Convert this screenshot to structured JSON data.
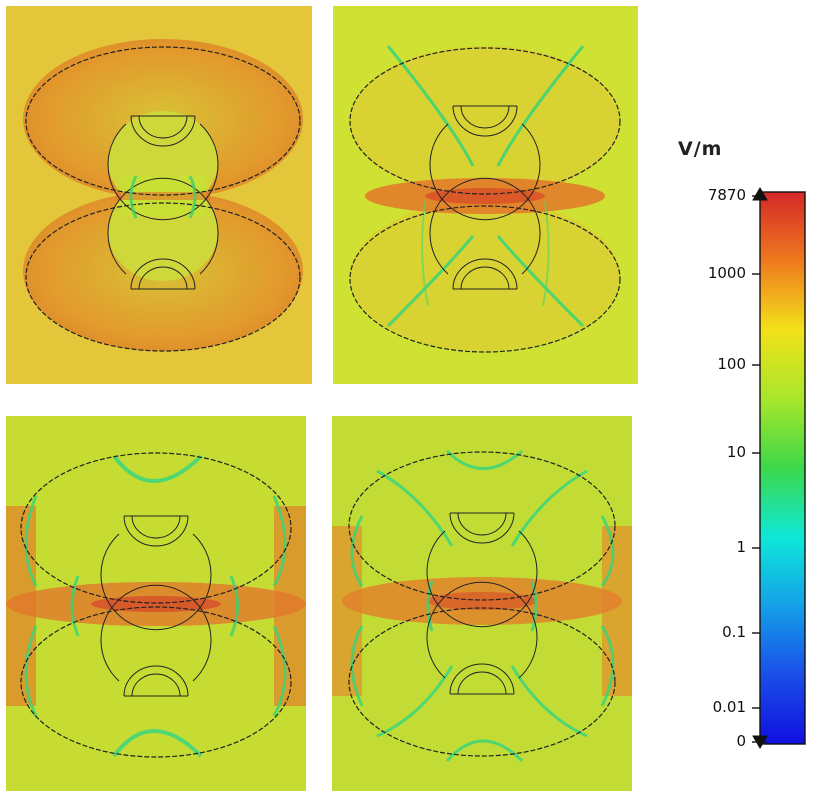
{
  "colorbar": {
    "unit": "V/m",
    "ticks": [
      {
        "label": "7870",
        "value": 7870,
        "end_marker": "max-arrow-icon"
      },
      {
        "label": "1000",
        "value": 1000
      },
      {
        "label": "100",
        "value": 100
      },
      {
        "label": "10",
        "value": 10
      },
      {
        "label": "1",
        "value": 1
      },
      {
        "label": "0.1",
        "value": 0.1
      },
      {
        "label": "0.01",
        "value": 0.01
      },
      {
        "label": "0",
        "value": 0,
        "end_marker": "min-arrow-icon"
      }
    ],
    "gradient_colors": [
      "#d42828",
      "#ee7a1e",
      "#f2e21a",
      "#a8e62a",
      "#3cd84a",
      "#0ee8d8",
      "#14a0e8",
      "#1a4ee8",
      "#1010e0"
    ]
  },
  "panels": [
    {
      "id": "mode-1",
      "background": "#e6c42e",
      "glow": "#dd8a2a"
    },
    {
      "id": "mode-2",
      "background": "#cfe22f",
      "glow": "#e3942a"
    },
    {
      "id": "mode-3",
      "background": "#c4dc32",
      "glow": "#e07b2a"
    },
    {
      "id": "mode-4",
      "background": "#c0dc35",
      "glow": "#e08a2d"
    }
  ]
}
